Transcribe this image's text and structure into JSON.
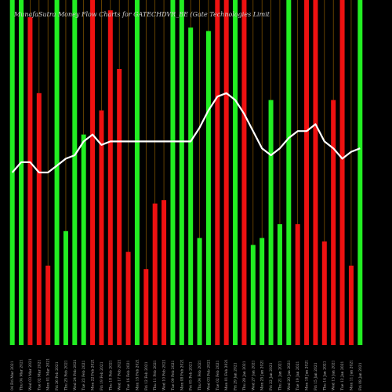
{
  "chart_data": {
    "type": "bar",
    "title": "MunafaSutra Money Flow Charts for GATECHDVR_BE (Gate Technologies Limit",
    "bar_colors": {
      "up": "#22ee22",
      "down": "#ee1111"
    },
    "line_color": "#ffffff",
    "guide_color": "#8a5a00",
    "background": "#000000",
    "ylim": [
      0,
      100
    ],
    "categories": [
      "04 Fri Mar 2021",
      "Thu 04 Mar 2021",
      "Wed 03 Mar 2021",
      "Tue 02 Mar 2021",
      "Mon 01 Mar 2021",
      "Fri 26 Feb 2021",
      "Thu 25 Feb 2021",
      "Wed 24 Feb 2021",
      "Tue 23 Feb 2021",
      "Mon 22 Feb 2021",
      "Fri 19 Feb 2021",
      "Thu 18 Feb 2021",
      "Wed 17 Feb 2021",
      "Tue 16 Feb 2021",
      "Mon 15 Feb 2021",
      "Fri 12 Feb 2021",
      "Thu 11 Feb 2021",
      "Wed 10 Feb 2021",
      "Tue 09 Feb 2021",
      "Mon 08 Feb 2021",
      "Fri 05 Feb 2021",
      "Thu 04 Feb 2021",
      "Wed 03 Feb 2021",
      "Tue 02 Feb 2021",
      "Mon 01 Feb 2021",
      "Fri 29 Jan 2021",
      "Thu 28 Jan 2021",
      "Wed 27 Jan 2021",
      "Mon 25 Jan 2021",
      "Fri 22 Jan 2021",
      "Thu 21 Jan 2021",
      "Wed 20 Jan 2021",
      "Tue 19 Jan 2021",
      "Mon 18 Jan 2021",
      "Fri 15 Jan 2021",
      "Thu 14 Jan 2021",
      "Wed 13 Jan 2021",
      "Tue 12 Jan 2021",
      "Mon 11 Jan 2021",
      "Fri 08 Jan 2021"
    ],
    "values": [
      100,
      100,
      95,
      73,
      23,
      100,
      33,
      100,
      61,
      100,
      68,
      97,
      80,
      27,
      100,
      22,
      41,
      42,
      100,
      100,
      92,
      31,
      91,
      100,
      100,
      100,
      100,
      29,
      31,
      71,
      35,
      100,
      35,
      100,
      100,
      30,
      71,
      100,
      23,
      100
    ],
    "direction": [
      "up",
      "up",
      "down",
      "down",
      "down",
      "up",
      "up",
      "up",
      "up",
      "down",
      "down",
      "down",
      "down",
      "down",
      "up",
      "down",
      "down",
      "down",
      "up",
      "up",
      "up",
      "up",
      "up",
      "down",
      "down",
      "up",
      "down",
      "up",
      "up",
      "up",
      "up",
      "up",
      "down",
      "down",
      "down",
      "down",
      "down",
      "down",
      "down",
      "up"
    ],
    "line_values": [
      50,
      53,
      53,
      50,
      50,
      52,
      54,
      55,
      59,
      61,
      58,
      59,
      59,
      59,
      59,
      59,
      59,
      59,
      59,
      59,
      59,
      63,
      68,
      72,
      73,
      71,
      67,
      62,
      57,
      55,
      57,
      60,
      62,
      62,
      64,
      59,
      57,
      54,
      56,
      57
    ]
  }
}
